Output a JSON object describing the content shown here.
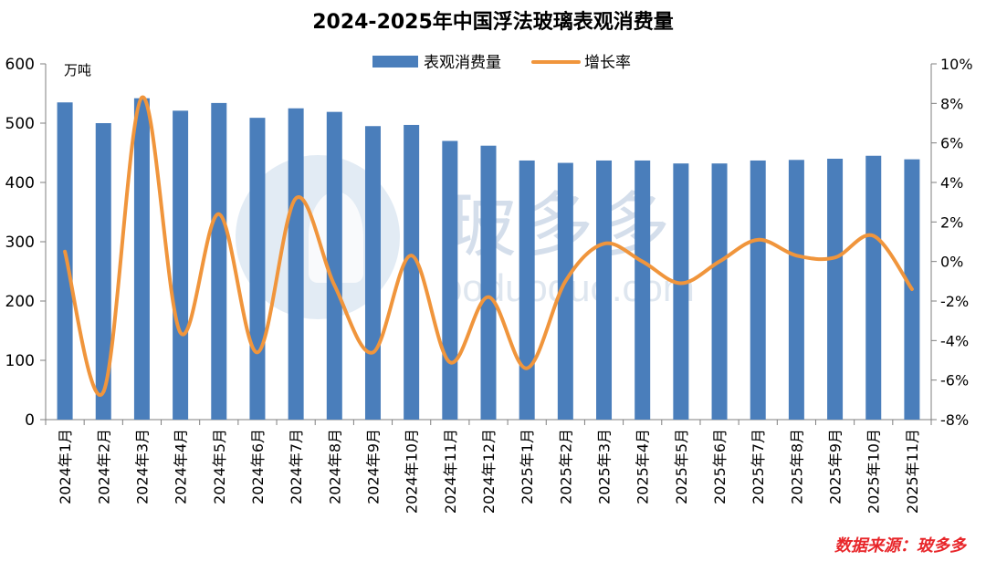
{
  "title": "2024-2025年中国浮法玻璃表观消费量",
  "source": "数据来源：玻多多",
  "watermark": {
    "text": "玻多多",
    "url": "boduoduo.com"
  },
  "colors": {
    "bar": "#4a7ebb",
    "line": "#f0953c",
    "axis": "#7f7f7f",
    "source": "#e8262a"
  },
  "chart_data": {
    "type": "bar+line",
    "title": "2024-2025年中国浮法玻璃表观消费量",
    "y_unit": "万吨",
    "legend_position": "top-center",
    "categories": [
      "2024年1月",
      "2024年2月",
      "2024年3月",
      "2024年4月",
      "2024年5月",
      "2024年6月",
      "2024年7月",
      "2024年8月",
      "2024年9月",
      "2024年10月",
      "2024年11月",
      "2024年12月",
      "2025年1月",
      "2025年2月",
      "2025年3月",
      "2025年4月",
      "2025年5月",
      "2025年6月",
      "2025年7月",
      "2025年8月",
      "2025年9月",
      "2025年10月",
      "2025年11月"
    ],
    "series": [
      {
        "name": "表观消费量",
        "type": "bar",
        "axis": "left",
        "values": [
          535,
          500,
          542,
          521,
          534,
          509,
          525,
          519,
          495,
          497,
          470,
          462,
          437,
          433,
          437,
          437,
          432,
          432,
          437,
          438,
          440,
          445,
          439
        ]
      },
      {
        "name": "增长率",
        "type": "line",
        "axis": "right",
        "unit": "%",
        "values": [
          0.5,
          -6.6,
          8.3,
          -3.6,
          2.4,
          -4.6,
          3.2,
          -1.2,
          -4.6,
          0.3,
          -5.1,
          -1.8,
          -5.4,
          -1.0,
          0.9,
          0.0,
          -1.1,
          0.0,
          1.1,
          0.3,
          0.2,
          1.3,
          -1.4
        ]
      }
    ],
    "y_left": {
      "min": 0,
      "max": 600,
      "ticks": [
        0,
        100,
        200,
        300,
        400,
        500,
        600
      ]
    },
    "y_right": {
      "min": -8,
      "max": 10,
      "ticks": [
        "-8%",
        "-6%",
        "-4%",
        "-2%",
        "0%",
        "2%",
        "4%",
        "6%",
        "8%",
        "10%"
      ]
    }
  }
}
